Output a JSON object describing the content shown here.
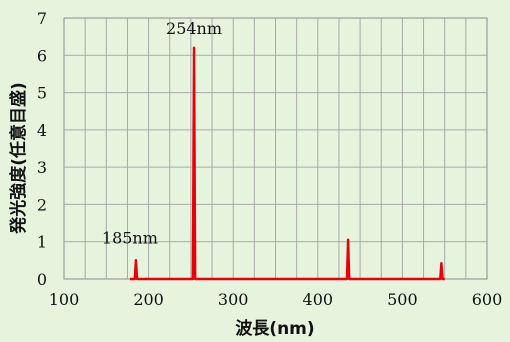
{
  "chart_data": {
    "type": "line",
    "title": "",
    "xlabel": "波長(nm)",
    "ylabel": "発光強度(任意目盛)",
    "xlim": [
      100,
      600
    ],
    "ylim": [
      0,
      7
    ],
    "x_ticks": [
      "100",
      "200",
      "300",
      "400",
      "500",
      "600"
    ],
    "y_ticks": [
      "0",
      "1",
      "2",
      "3",
      "4",
      "5",
      "6",
      "7"
    ],
    "x_grid_step": 25,
    "y_grid_step": 1,
    "grid": true,
    "line_color": "#e8000b",
    "series": [
      {
        "peaks": [
          {
            "x": 185,
            "y": 0.5
          },
          {
            "x": 253.7,
            "y": 6.2
          },
          {
            "x": 435.8,
            "y": 1.05
          },
          {
            "x": 546.1,
            "y": 0.42
          }
        ]
      }
    ],
    "annotations": [
      {
        "text": "254nm",
        "x": 253.7,
        "y": 6.2
      },
      {
        "text": "185nm",
        "x": 185,
        "y": 0.5
      }
    ]
  }
}
